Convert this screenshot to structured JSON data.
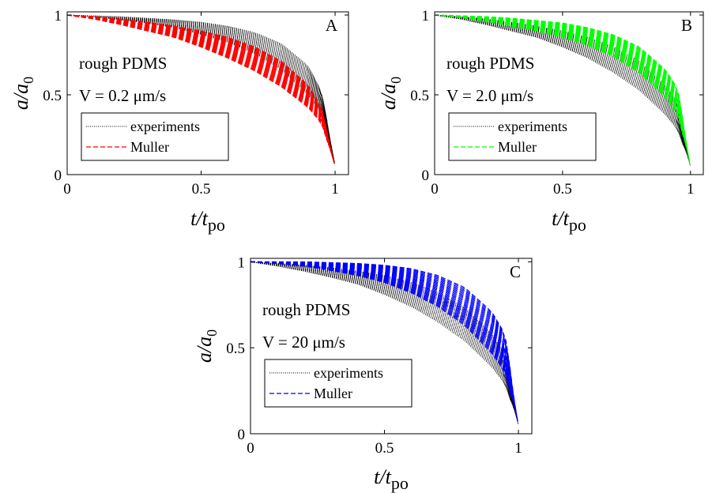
{
  "chart_data": [
    {
      "type": "line",
      "panel": "A",
      "xlabel": "t/t_po",
      "ylabel": "a/a_0",
      "xlim": [
        0,
        1.05
      ],
      "ylim": [
        0,
        1.02
      ],
      "xticks": [
        "0",
        "0.5",
        "1"
      ],
      "yticks": [
        "0",
        "0.5",
        "1"
      ],
      "annotation_lines": [
        "rough PDMS",
        "V = 0.2 μm/s"
      ],
      "legend": {
        "placement": "lower-left",
        "entries": [
          "experiments",
          "Muller"
        ]
      },
      "series": [
        {
          "name": "experiments",
          "style": "dotted",
          "color": "#000000",
          "x": [
            0,
            0.1,
            0.2,
            0.3,
            0.4,
            0.5,
            0.6,
            0.7,
            0.8,
            0.9,
            0.95,
            1.0
          ],
          "upper": [
            1.0,
            0.995,
            0.99,
            0.98,
            0.97,
            0.955,
            0.93,
            0.89,
            0.82,
            0.68,
            0.52,
            0.06
          ],
          "lower": [
            1.0,
            0.99,
            0.97,
            0.95,
            0.92,
            0.88,
            0.83,
            0.76,
            0.66,
            0.5,
            0.38,
            0.06
          ]
        },
        {
          "name": "Muller",
          "style": "dashed",
          "color": "#ff0000",
          "x": [
            0,
            0.1,
            0.2,
            0.3,
            0.4,
            0.5,
            0.6,
            0.7,
            0.8,
            0.9,
            0.95,
            1.0
          ],
          "upper": [
            1.0,
            0.99,
            0.975,
            0.955,
            0.93,
            0.9,
            0.86,
            0.8,
            0.71,
            0.56,
            0.42,
            0.05
          ],
          "lower": [
            1.0,
            0.975,
            0.94,
            0.9,
            0.86,
            0.8,
            0.73,
            0.65,
            0.55,
            0.42,
            0.32,
            0.05
          ]
        }
      ],
      "panel_letter": "A"
    },
    {
      "type": "line",
      "panel": "B",
      "xlabel": "t/t_po",
      "ylabel": "a/a_0",
      "xlim": [
        0,
        1.05
      ],
      "ylim": [
        0,
        1.02
      ],
      "xticks": [
        "0",
        "0.5",
        "1"
      ],
      "yticks": [
        "0",
        "0.5",
        "1"
      ],
      "annotation_lines": [
        "rough PDMS",
        "V = 2.0 μm/s"
      ],
      "legend": {
        "placement": "lower-left",
        "entries": [
          "experiments",
          "Muller"
        ]
      },
      "series": [
        {
          "name": "experiments",
          "style": "dotted",
          "color": "#000000",
          "x": [
            0,
            0.1,
            0.2,
            0.3,
            0.4,
            0.5,
            0.6,
            0.7,
            0.8,
            0.9,
            0.95,
            1.0
          ],
          "upper": [
            1.0,
            0.99,
            0.975,
            0.955,
            0.93,
            0.9,
            0.86,
            0.8,
            0.71,
            0.56,
            0.45,
            0.05
          ],
          "lower": [
            1.0,
            0.975,
            0.94,
            0.9,
            0.86,
            0.8,
            0.73,
            0.64,
            0.53,
            0.38,
            0.28,
            0.05
          ]
        },
        {
          "name": "Muller",
          "style": "dashed",
          "color": "#00ff00",
          "x": [
            0,
            0.1,
            0.2,
            0.3,
            0.4,
            0.5,
            0.6,
            0.7,
            0.8,
            0.9,
            0.95,
            1.0
          ],
          "upper": [
            1.0,
            0.995,
            0.99,
            0.98,
            0.965,
            0.95,
            0.92,
            0.875,
            0.8,
            0.66,
            0.54,
            0.05
          ],
          "lower": [
            1.0,
            0.985,
            0.96,
            0.93,
            0.9,
            0.86,
            0.81,
            0.74,
            0.64,
            0.49,
            0.38,
            0.05
          ]
        }
      ],
      "panel_letter": "B"
    },
    {
      "type": "line",
      "panel": "C",
      "xlabel": "t/t_po",
      "ylabel": "a/a_0",
      "xlim": [
        0,
        1.05
      ],
      "ylim": [
        0,
        1.02
      ],
      "xticks": [
        "0",
        "0.5",
        "1"
      ],
      "yticks": [
        "0",
        "0.5",
        "1"
      ],
      "annotation_lines": [
        "rough PDMS",
        "V = 20 μm/s"
      ],
      "legend": {
        "placement": "lower-left",
        "entries": [
          "experiments",
          "Muller"
        ]
      },
      "series": [
        {
          "name": "experiments",
          "style": "dotted",
          "color": "#000000",
          "x": [
            0,
            0.1,
            0.2,
            0.3,
            0.4,
            0.5,
            0.6,
            0.7,
            0.8,
            0.9,
            0.95,
            1.0
          ],
          "upper": [
            1.0,
            0.99,
            0.98,
            0.965,
            0.945,
            0.92,
            0.88,
            0.82,
            0.73,
            0.58,
            0.46,
            0.05
          ],
          "lower": [
            1.0,
            0.975,
            0.945,
            0.91,
            0.87,
            0.81,
            0.74,
            0.65,
            0.54,
            0.39,
            0.29,
            0.05
          ]
        },
        {
          "name": "Muller",
          "style": "dashed",
          "color": "#0000ff",
          "x": [
            0,
            0.1,
            0.2,
            0.3,
            0.4,
            0.5,
            0.6,
            0.7,
            0.8,
            0.9,
            0.95,
            1.0
          ],
          "upper": [
            1.0,
            1.0,
            1.0,
            0.995,
            0.99,
            0.98,
            0.96,
            0.92,
            0.85,
            0.71,
            0.58,
            0.05
          ],
          "lower": [
            1.0,
            0.99,
            0.975,
            0.95,
            0.92,
            0.88,
            0.82,
            0.74,
            0.63,
            0.47,
            0.36,
            0.05
          ]
        }
      ],
      "panel_letter": "C"
    }
  ]
}
